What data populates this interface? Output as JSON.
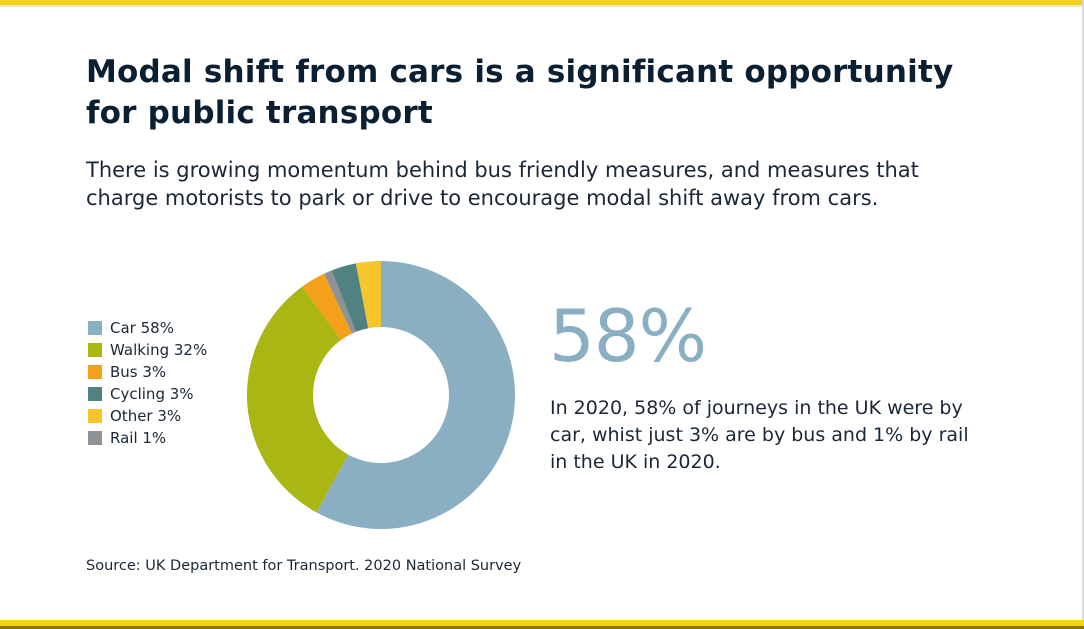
{
  "title": "Modal shift from cars is a significant opportunity for public transport",
  "subtitle": "There is growing momentum behind bus friendly measures, and measures that charge motorists to park or drive to encourage modal shift away from cars.",
  "big_stat": "58%",
  "stat_description": "In 2020, 58% of journeys in the UK were by car, whist just 3% are by bus and 1% by rail in the UK in 2020.",
  "source": "Source: UK Department for Transport. 2020 National Survey",
  "legend": [
    {
      "label": "Car 58%",
      "color": "#8aafc2"
    },
    {
      "label": "Walking 32%",
      "color": "#a9b614"
    },
    {
      "label": "Bus 3%",
      "color": "#f5a01a"
    },
    {
      "label": "Cycling 3%",
      "color": "#4f8280"
    },
    {
      "label": "Other 3%",
      "color": "#f6c42b"
    },
    {
      "label": "Rail 1%",
      "color": "#8c9296"
    }
  ],
  "chart_data": {
    "type": "pie",
    "donut": true,
    "categories": [
      "Car",
      "Walking",
      "Bus",
      "Rail",
      "Cycling",
      "Other"
    ],
    "values": [
      58,
      32,
      3,
      1,
      3,
      3
    ],
    "colors": [
      "#8aafc2",
      "#a9b614",
      "#f5a01a",
      "#8c9296",
      "#4f8280",
      "#f6c42b"
    ],
    "legend_position": "left"
  }
}
